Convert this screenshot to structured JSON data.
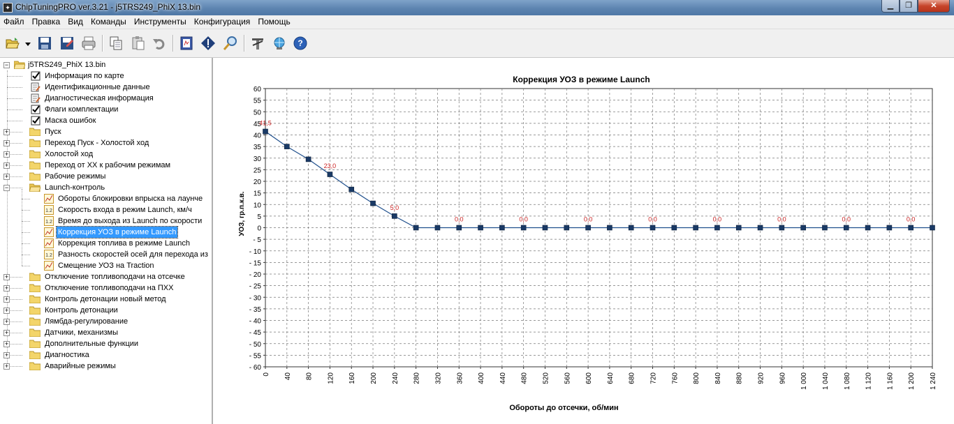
{
  "window": {
    "title": "ChipTuningPRO ver.3.21 - j5TRS249_PhiX 13.bin"
  },
  "menu": [
    "Файл",
    "Правка",
    "Вид",
    "Команды",
    "Инструменты",
    "Конфигурация",
    "Помощь"
  ],
  "toolbar": [
    {
      "name": "open-folder-icon"
    },
    {
      "name": "dropdown-arrow-icon"
    },
    {
      "name": "save-icon"
    },
    {
      "name": "save-as-icon"
    },
    {
      "name": "print-icon"
    },
    {
      "name": "copy-icon"
    },
    {
      "name": "paste-icon"
    },
    {
      "name": "undo-icon"
    },
    {
      "name": "book-icon"
    },
    {
      "name": "info-icon"
    },
    {
      "name": "search-icon"
    },
    {
      "name": "tools-icon"
    },
    {
      "name": "network-icon"
    },
    {
      "name": "help-icon"
    }
  ],
  "tree": {
    "root": "j5TRS249_PhiX 13.bin",
    "items": [
      {
        "label": "Информация по карте",
        "icon": "check-icon",
        "level": 1,
        "expander": false
      },
      {
        "label": "Идентификационные данные",
        "icon": "document-edit-icon",
        "level": 1,
        "expander": false
      },
      {
        "label": "Диагностическая информация",
        "icon": "document-edit-icon",
        "level": 1,
        "expander": false
      },
      {
        "label": "Флаги комплектации",
        "icon": "check-icon",
        "level": 1,
        "expander": false
      },
      {
        "label": "Маска ошибок",
        "icon": "check-icon",
        "level": 1,
        "expander": false
      },
      {
        "label": "Пуск",
        "icon": "folder-icon",
        "level": 1,
        "expander": "+"
      },
      {
        "label": "Переход Пуск - Холостой ход",
        "icon": "folder-icon",
        "level": 1,
        "expander": "+"
      },
      {
        "label": "Холостой ход",
        "icon": "folder-icon",
        "level": 1,
        "expander": "+"
      },
      {
        "label": "Переход от ХХ к рабочим режимам",
        "icon": "folder-icon",
        "level": 1,
        "expander": "+"
      },
      {
        "label": "Рабочие режимы",
        "icon": "folder-icon",
        "level": 1,
        "expander": "+"
      },
      {
        "label": "Launch-контроль",
        "icon": "folder-open-icon",
        "level": 1,
        "expander": "-"
      },
      {
        "label": "Обороты блокировки впрыска на лаунче",
        "icon": "chart-icon",
        "level": 2,
        "expander": false
      },
      {
        "label": "Скорость входа в режим Launch, км/ч",
        "icon": "number-icon",
        "level": 2,
        "expander": false
      },
      {
        "label": "Время до выхода из Launch по скорости",
        "icon": "number-icon",
        "level": 2,
        "expander": false
      },
      {
        "label": "Коррекция УОЗ в режиме Launch",
        "icon": "chart-icon",
        "level": 2,
        "expander": false,
        "selected": true
      },
      {
        "label": "Коррекция топлива в режиме Launch",
        "icon": "chart-icon",
        "level": 2,
        "expander": false
      },
      {
        "label": "Разность скоростей осей для перехода из",
        "icon": "number-icon",
        "level": 2,
        "expander": false
      },
      {
        "label": "Смещение УОЗ на Traction",
        "icon": "chart-icon",
        "level": 2,
        "expander": false
      },
      {
        "label": "Отключение топливоподачи на отсечке",
        "icon": "folder-icon",
        "level": 1,
        "expander": "+"
      },
      {
        "label": "Отключение топливоподачи на ПХХ",
        "icon": "folder-icon",
        "level": 1,
        "expander": "+"
      },
      {
        "label": "Контроль детонации новый метод",
        "icon": "folder-icon",
        "level": 1,
        "expander": "+"
      },
      {
        "label": "Контроль детонации",
        "icon": "folder-icon",
        "level": 1,
        "expander": "+"
      },
      {
        "label": "Лямбда-регулирование",
        "icon": "folder-icon",
        "level": 1,
        "expander": "+"
      },
      {
        "label": "Датчики, механизмы",
        "icon": "folder-icon",
        "level": 1,
        "expander": "+"
      },
      {
        "label": "Дополнительные функции",
        "icon": "folder-icon",
        "level": 1,
        "expander": "+"
      },
      {
        "label": "Диагностика",
        "icon": "folder-icon",
        "level": 1,
        "expander": "+"
      },
      {
        "label": "Аварийные режимы",
        "icon": "folder-icon",
        "level": 1,
        "expander": "+"
      }
    ]
  },
  "chart_data": {
    "type": "line",
    "title": "Коррекция УОЗ в режиме Launch",
    "xlabel": "Обороты до отсечки, об/мин",
    "ylabel": "УОЗ, гр.п.к.в.",
    "xlim": [
      0,
      1240
    ],
    "ylim": [
      -60,
      60
    ],
    "x_ticks": [
      "0",
      "40",
      "80",
      "120",
      "160",
      "200",
      "240",
      "280",
      "320",
      "360",
      "400",
      "440",
      "480",
      "520",
      "560",
      "600",
      "640",
      "680",
      "720",
      "760",
      "800",
      "840",
      "880",
      "920",
      "960",
      "1 000",
      "1 040",
      "1 080",
      "1 120",
      "1 160",
      "1 200",
      "1 240"
    ],
    "y_ticks": [
      "60",
      "55",
      "50",
      "45",
      "40",
      "35",
      "30",
      "25",
      "20",
      "15",
      "10",
      "5",
      "0",
      "- 5",
      "- 10",
      "- 15",
      "- 20",
      "- 25",
      "- 30",
      "- 35",
      "- 40",
      "- 45",
      "- 50",
      "- 55",
      "- 60"
    ],
    "grid": true,
    "series": [
      {
        "x": [
          0,
          40,
          80,
          120,
          160,
          200,
          240,
          280,
          320,
          360,
          400,
          440,
          480,
          520,
          560,
          600,
          640,
          680,
          720,
          760,
          800,
          840,
          880,
          920,
          960,
          1000,
          1040,
          1080,
          1120,
          1160,
          1200,
          1240
        ],
        "values": [
          41.5,
          35,
          29.5,
          23,
          16.5,
          10.5,
          5,
          0,
          0,
          0,
          0,
          0,
          0,
          0,
          0,
          0,
          0,
          0,
          0,
          0,
          0,
          0,
          0,
          0,
          0,
          0,
          0,
          0,
          0,
          0,
          0,
          0
        ]
      }
    ],
    "data_labels": [
      {
        "x": 0,
        "text": "41,5"
      },
      {
        "x": 120,
        "text": "23,0"
      },
      {
        "x": 240,
        "text": "5,0"
      },
      {
        "x": 360,
        "text": "0,0"
      },
      {
        "x": 480,
        "text": "0,0"
      },
      {
        "x": 600,
        "text": "0,0"
      },
      {
        "x": 720,
        "text": "0,0"
      },
      {
        "x": 840,
        "text": "0,0"
      },
      {
        "x": 960,
        "text": "0,0"
      },
      {
        "x": 1080,
        "text": "0,0"
      },
      {
        "x": 1200,
        "text": "0,0"
      }
    ],
    "colors": {
      "line": "#1f4f8c",
      "marker": "#1a3a66",
      "label": "#cc2222",
      "grid": "#777777"
    }
  }
}
